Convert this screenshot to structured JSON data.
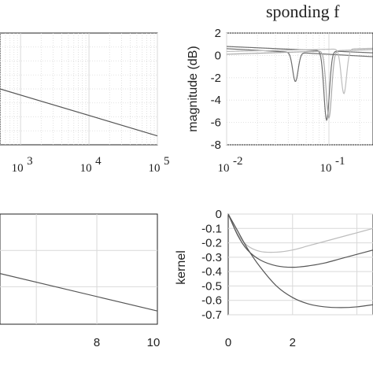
{
  "top_text": "sponding f",
  "colors": {
    "dark": "#555555",
    "mid": "#6e6e6e",
    "light": "#a8a8a8",
    "lighter": "#bdbdbd",
    "grid": "#d9d9d9",
    "axis": "#222222"
  },
  "chart_data": [
    {
      "id": "top-left",
      "type": "line",
      "x_scale": "log",
      "xlim_visible": [
        500,
        100000
      ],
      "x_ticks": [
        1000,
        10000,
        100000
      ],
      "x_tick_labels": [
        "10",
        "10",
        "10"
      ],
      "x_tick_exponents": [
        "3",
        "4",
        "5"
      ],
      "grid": true,
      "series": [
        {
          "x": [
            500,
            100000
          ],
          "y": [
            0.5,
            0.92
          ]
        }
      ]
    },
    {
      "id": "top-right",
      "type": "line",
      "x_scale": "log",
      "xlim_visible": [
        0.01,
        0.25
      ],
      "ylim": [
        -8,
        2
      ],
      "ylabel": "magnitude (dB)",
      "x_ticks": [
        0.01,
        0.1
      ],
      "x_tick_labels": [
        "10",
        "10"
      ],
      "x_tick_exponents": [
        "-2",
        "-1"
      ],
      "y_ticks": [
        2,
        0,
        -2,
        -4,
        -6,
        -8
      ],
      "y_tick_labels": [
        "2",
        "0",
        "-2",
        "-4",
        "-6",
        "-8"
      ],
      "grid": true,
      "series": [
        {
          "notch": 0.047,
          "base": 0.6,
          "slope": -0.5,
          "depth": -2.6,
          "color": "mid"
        },
        {
          "notch": 0.095,
          "base": 0.8,
          "slope": -0.4,
          "depth": -6.2,
          "color": "mid"
        },
        {
          "notch": 0.1,
          "base": 0.1,
          "slope": 0.3,
          "depth": -6.0,
          "color": "light"
        },
        {
          "notch": 0.14,
          "base": 0.35,
          "slope": 0.2,
          "depth": -4.0,
          "color": "lighter"
        }
      ]
    },
    {
      "id": "bottom-left",
      "type": "line",
      "xlim_visible": [
        4.8,
        10
      ],
      "x_ticks": [
        8,
        10
      ],
      "x_tick_labels": [
        "8",
        "10"
      ],
      "grid": true,
      "series": [
        {
          "x": [
            4.8,
            10
          ],
          "y": [
            0.54,
            0.88
          ]
        }
      ]
    },
    {
      "id": "bottom-right",
      "type": "line",
      "xlim_visible": [
        0,
        4.5
      ],
      "ylim": [
        -0.7,
        0
      ],
      "ylabel": "kernel",
      "x_ticks": [
        0,
        2
      ],
      "x_tick_labels": [
        "0",
        "2"
      ],
      "y_ticks": [
        0,
        -0.1,
        -0.2,
        -0.3,
        -0.4,
        -0.5,
        -0.6,
        -0.7
      ],
      "y_tick_labels": [
        "0",
        "-0.1",
        "-0.2",
        "-0.3",
        "-0.4",
        "-0.5",
        "-0.6",
        "-0.7"
      ],
      "grid": true,
      "series": [
        {
          "x": [
            0,
            0.3,
            0.6,
            1.0,
            1.5,
            2.0,
            2.5,
            3.0,
            3.5,
            4.0,
            4.5
          ],
          "y": [
            0,
            -0.14,
            -0.22,
            -0.26,
            -0.265,
            -0.25,
            -0.22,
            -0.19,
            -0.16,
            -0.13,
            -0.1
          ],
          "color": "lighter"
        },
        {
          "x": [
            0,
            0.3,
            0.6,
            1.0,
            1.5,
            2.0,
            2.5,
            3.0,
            3.5,
            4.0,
            4.5
          ],
          "y": [
            0,
            -0.15,
            -0.25,
            -0.32,
            -0.36,
            -0.37,
            -0.36,
            -0.34,
            -0.31,
            -0.28,
            -0.25
          ],
          "color": "dark"
        },
        {
          "x": [
            0,
            0.3,
            0.6,
            1.0,
            1.5,
            2.0,
            2.5,
            3.0,
            3.5,
            4.0,
            4.5
          ],
          "y": [
            0,
            -0.12,
            -0.24,
            -0.37,
            -0.5,
            -0.58,
            -0.625,
            -0.645,
            -0.65,
            -0.645,
            -0.63
          ],
          "color": "dark"
        }
      ]
    }
  ]
}
